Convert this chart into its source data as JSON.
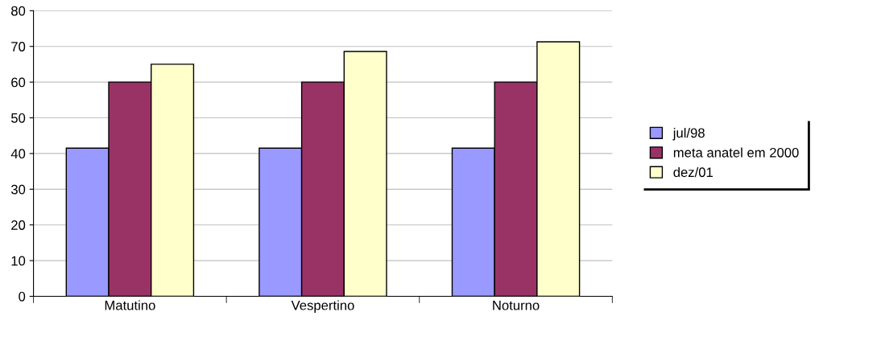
{
  "chart_data": {
    "type": "bar",
    "categories": [
      "Matutino",
      "Vespertino",
      "Noturno"
    ],
    "series": [
      {
        "name": "jul/98",
        "color": "#9999ff",
        "values": [
          41.5,
          41.5,
          41.5
        ]
      },
      {
        "name": "meta anatel em 2000",
        "color": "#993366",
        "values": [
          60,
          60,
          60
        ]
      },
      {
        "name": "dez/01",
        "color": "#ffffcc",
        "values": [
          65,
          68.6,
          71.3
        ]
      }
    ],
    "ylim": [
      0,
      80
    ],
    "yticks": [
      0,
      10,
      20,
      30,
      40,
      50,
      60,
      70,
      80
    ],
    "grid": "y",
    "legend": "right"
  }
}
